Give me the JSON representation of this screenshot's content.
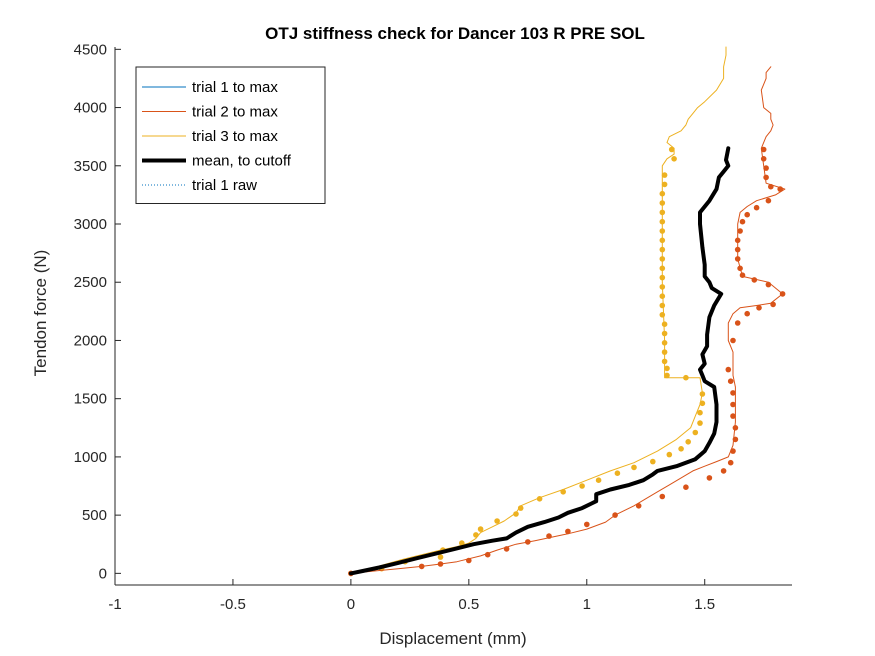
{
  "chart_data": {
    "type": "line",
    "title": "OTJ stiffness check for Dancer 103 R PRE SOL",
    "xlabel": "Displacement (mm)",
    "ylabel": "Tendon force (N)",
    "xlim": [
      -1,
      1.87
    ],
    "ylim": [
      -100,
      4520
    ],
    "xticks": [
      -1,
      -0.5,
      0,
      0.5,
      1,
      1.5
    ],
    "xtick_labels": [
      "-1",
      "-0.5",
      "0",
      "0.5",
      "1",
      "1.5"
    ],
    "yticks": [
      0,
      500,
      1000,
      1500,
      2000,
      2500,
      3000,
      3500,
      4000,
      4500
    ],
    "ytick_labels": [
      "0",
      "500",
      "1000",
      "1500",
      "2000",
      "2500",
      "3000",
      "3500",
      "4000",
      "4500"
    ],
    "grid": false,
    "legend_position": "top-left",
    "legend": [
      {
        "label": "trial 1 to max",
        "color": "#0072BD",
        "style": "solid",
        "width": 1
      },
      {
        "label": "trial 2 to max",
        "color": "#D95319",
        "style": "solid",
        "width": 1
      },
      {
        "label": "trial 3 to max",
        "color": "#EDB120",
        "style": "solid",
        "width": 1
      },
      {
        "label": "mean, to cutoff",
        "color": "#000000",
        "style": "solid",
        "width": 4
      },
      {
        "label": "trial 1 raw",
        "color": "#0072BD",
        "style": "dotted",
        "width": 1
      }
    ],
    "series": [
      {
        "name": "trial 3 to max",
        "color": "#EDB120",
        "line_x": [
          0,
          0.05,
          0.1,
          0.15,
          0.22,
          0.3,
          0.38,
          0.45,
          0.5,
          0.53,
          0.55,
          0.6,
          0.65,
          0.7,
          0.72,
          0.8,
          0.9,
          1.0,
          1.1,
          1.2,
          1.3,
          1.38,
          1.44,
          1.46,
          1.48,
          1.49,
          1.48,
          1.33,
          1.33,
          1.32,
          1.32,
          1.32,
          1.32,
          1.34,
          1.37,
          1.37,
          1.34,
          1.35,
          1.4,
          1.42,
          1.43,
          1.45,
          1.47,
          1.5,
          1.55,
          1.58,
          1.58,
          1.59,
          1.59
        ],
        "line_y": [
          0,
          20,
          50,
          80,
          120,
          160,
          200,
          230,
          260,
          300,
          350,
          400,
          450,
          520,
          580,
          650,
          720,
          800,
          880,
          950,
          1050,
          1150,
          1250,
          1350,
          1450,
          1550,
          1680,
          1680,
          2000,
          2500,
          3000,
          3300,
          3500,
          3560,
          3600,
          3650,
          3700,
          3750,
          3800,
          3850,
          3900,
          3950,
          4000,
          4050,
          4150,
          4250,
          4350,
          4450,
          4520
        ],
        "marker_x": [
          0,
          0.13,
          0.23,
          0.38,
          0.39,
          0.47,
          0.53,
          0.55,
          0.62,
          0.7,
          0.72,
          0.8,
          0.9,
          0.98,
          1.05,
          1.13,
          1.2,
          1.28,
          1.35,
          1.4,
          1.43,
          1.46,
          1.48,
          1.48,
          1.49,
          1.49,
          1.42,
          1.34,
          1.34,
          1.33,
          1.33,
          1.33,
          1.33,
          1.33,
          1.32,
          1.32,
          1.32,
          1.32,
          1.32,
          1.32,
          1.32,
          1.32,
          1.32,
          1.32,
          1.32,
          1.32,
          1.32,
          1.32,
          1.33,
          1.33,
          1.37,
          1.36
        ],
        "marker_y": [
          0,
          40,
          100,
          140,
          200,
          260,
          330,
          380,
          450,
          510,
          560,
          640,
          700,
          750,
          800,
          860,
          910,
          960,
          1020,
          1070,
          1130,
          1210,
          1290,
          1380,
          1460,
          1540,
          1680,
          1700,
          1760,
          1820,
          1900,
          1980,
          2060,
          2140,
          2220,
          2300,
          2380,
          2460,
          2540,
          2620,
          2700,
          2780,
          2860,
          2940,
          3020,
          3100,
          3180,
          3260,
          3340,
          3420,
          3560,
          3640
        ]
      },
      {
        "name": "trial 2 to max",
        "color": "#D95319",
        "line_x": [
          0,
          0.1,
          0.2,
          0.3,
          0.38,
          0.45,
          0.55,
          0.62,
          0.7,
          0.78,
          0.85,
          0.92,
          1.0,
          1.08,
          1.12,
          1.2,
          1.25,
          1.3,
          1.35,
          1.4,
          1.45,
          1.5,
          1.55,
          1.6,
          1.62,
          1.63,
          1.63,
          1.62,
          1.62,
          1.6,
          1.6,
          1.62,
          1.65,
          1.72,
          1.78,
          1.83,
          1.77,
          1.66,
          1.64,
          1.64,
          1.64,
          1.65,
          1.68,
          1.72,
          1.8,
          1.84,
          1.76,
          1.75,
          1.74,
          1.76,
          1.78,
          1.79,
          1.78,
          1.78,
          1.75,
          1.74,
          1.76,
          1.76,
          1.78
        ],
        "line_y": [
          0,
          20,
          40,
          60,
          80,
          100,
          150,
          200,
          250,
          280,
          310,
          340,
          380,
          440,
          500,
          580,
          640,
          700,
          760,
          820,
          880,
          920,
          960,
          1000,
          1100,
          1300,
          1600,
          1700,
          1900,
          2000,
          2150,
          2230,
          2280,
          2300,
          2320,
          2400,
          2500,
          2550,
          2700,
          2900,
          3000,
          3100,
          3150,
          3200,
          3250,
          3300,
          3350,
          3500,
          3650,
          3750,
          3800,
          3850,
          3900,
          3950,
          4000,
          4150,
          4250,
          4300,
          4350
        ],
        "marker_x": [
          0,
          0.3,
          0.38,
          0.5,
          0.58,
          0.66,
          0.75,
          0.84,
          0.92,
          1.0,
          1.12,
          1.22,
          1.32,
          1.42,
          1.52,
          1.58,
          1.61,
          1.62,
          1.63,
          1.63,
          1.62,
          1.62,
          1.62,
          1.61,
          1.6,
          1.62,
          1.64,
          1.68,
          1.73,
          1.79,
          1.83,
          1.77,
          1.71,
          1.66,
          1.65,
          1.64,
          1.64,
          1.64,
          1.65,
          1.66,
          1.68,
          1.72,
          1.77,
          1.82,
          1.78,
          1.76,
          1.76,
          1.75,
          1.75
        ],
        "marker_y": [
          0,
          60,
          80,
          110,
          160,
          210,
          270,
          320,
          360,
          420,
          500,
          580,
          660,
          740,
          820,
          880,
          950,
          1050,
          1150,
          1250,
          1350,
          1450,
          1550,
          1650,
          1750,
          2000,
          2150,
          2230,
          2280,
          2310,
          2400,
          2480,
          2520,
          2560,
          2620,
          2700,
          2780,
          2860,
          2940,
          3020,
          3080,
          3140,
          3200,
          3300,
          3320,
          3400,
          3480,
          3560,
          3640
        ]
      },
      {
        "name": "mean, to cutoff",
        "color": "#000000",
        "line_x": [
          0,
          0.05,
          0.12,
          0.2,
          0.28,
          0.36,
          0.44,
          0.52,
          0.6,
          0.66,
          0.7,
          0.75,
          0.82,
          0.88,
          0.92,
          0.98,
          1.02,
          1.04,
          1.04,
          1.1,
          1.18,
          1.24,
          1.28,
          1.3,
          1.38,
          1.46,
          1.5,
          1.52,
          1.54,
          1.55,
          1.55,
          1.54,
          1.5,
          1.49,
          1.48,
          1.5,
          1.49,
          1.51,
          1.51,
          1.52,
          1.54,
          1.57,
          1.53,
          1.52,
          1.5,
          1.5,
          1.49,
          1.48,
          1.48,
          1.48,
          1.52,
          1.55,
          1.56,
          1.58,
          1.6,
          1.59,
          1.6
        ],
        "line_y": [
          0,
          20,
          50,
          90,
          130,
          170,
          210,
          250,
          280,
          300,
          350,
          400,
          440,
          480,
          520,
          560,
          600,
          620,
          680,
          720,
          760,
          800,
          850,
          880,
          920,
          980,
          1050,
          1120,
          1200,
          1300,
          1450,
          1600,
          1650,
          1700,
          1750,
          1800,
          1880,
          1950,
          2050,
          2200,
          2300,
          2400,
          2450,
          2500,
          2550,
          2650,
          2800,
          3000,
          3050,
          3100,
          3200,
          3300,
          3400,
          3450,
          3500,
          3550,
          3650
        ]
      }
    ]
  }
}
